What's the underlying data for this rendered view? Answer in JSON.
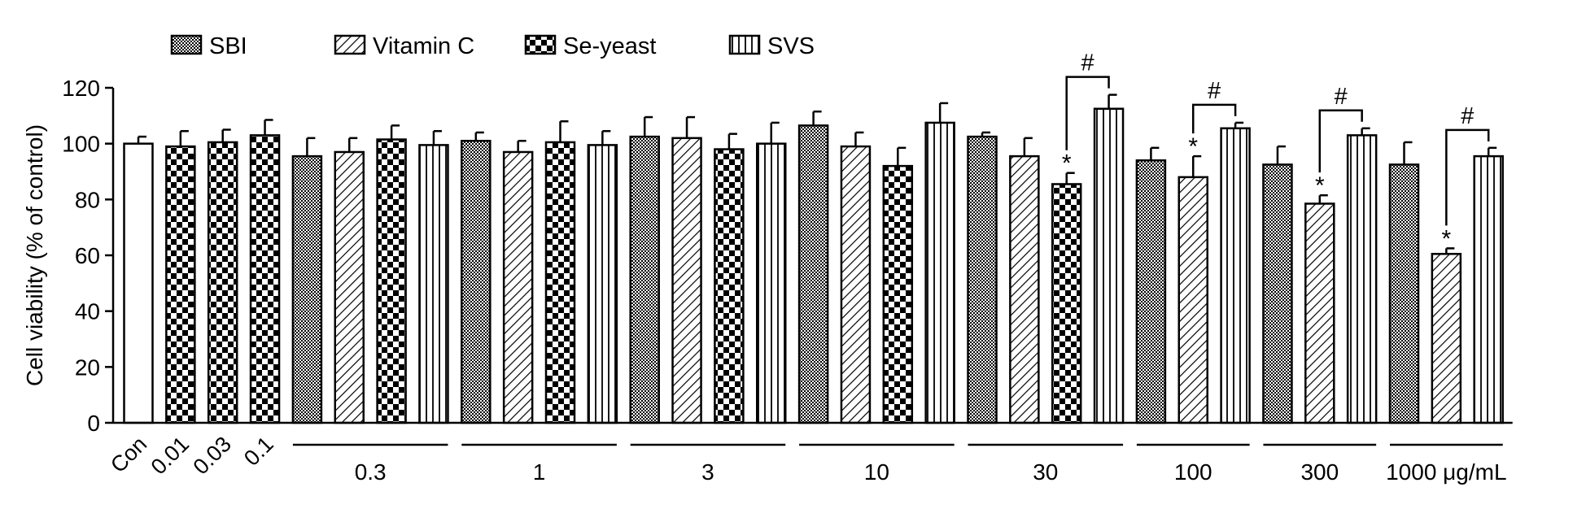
{
  "chart_data": {
    "type": "bar",
    "y_label": "Cell viability (% of control)",
    "ylim": [
      0,
      120
    ],
    "yticks": [
      0,
      20,
      40,
      60,
      80,
      100,
      120
    ],
    "categories": [
      "Con",
      "0.01",
      "0.03",
      "0.1",
      "0.3",
      "1",
      "3",
      "10",
      "30",
      "100",
      "300",
      "1000 μg/mL"
    ],
    "control": {
      "category": "Con",
      "value": 100,
      "error": 2.5,
      "color": "#ffffff"
    },
    "series": [
      {
        "name": "SBI",
        "pattern": "dots",
        "color": "#000000",
        "values": [
          null,
          null,
          null,
          null,
          95.5,
          101,
          102.5,
          106.5,
          102.5,
          94,
          92.5,
          92.5
        ],
        "errors": [
          null,
          null,
          null,
          null,
          6.5,
          3,
          7,
          5,
          1.5,
          4.5,
          6.5,
          8
        ]
      },
      {
        "name": "Vitamin C",
        "pattern": "diagonal",
        "color": "#000000",
        "values": [
          null,
          null,
          null,
          null,
          97,
          97,
          102,
          99,
          95.5,
          88,
          78.5,
          60.5
        ],
        "errors": [
          null,
          null,
          null,
          null,
          5,
          4,
          7.5,
          5,
          6.5,
          7.5,
          3,
          2
        ]
      },
      {
        "name": "Se-yeast",
        "pattern": "checker",
        "color": "#000000",
        "values": [
          null,
          99,
          100.5,
          103,
          101.5,
          100.5,
          98,
          92,
          85.5,
          null,
          null,
          null
        ],
        "errors": [
          null,
          5.5,
          4.5,
          5.5,
          5,
          7.5,
          5.5,
          6.5,
          4,
          null,
          null,
          null
        ]
      },
      {
        "name": "SVS",
        "pattern": "vertical",
        "color": "#000000",
        "values": [
          null,
          null,
          null,
          null,
          99.5,
          99.5,
          100,
          107.5,
          112.5,
          105.5,
          103,
          95.5
        ],
        "errors": [
          null,
          null,
          null,
          null,
          5,
          5,
          7.5,
          7,
          5,
          2,
          2.5,
          3
        ]
      }
    ],
    "annotations": [
      {
        "text": "*",
        "category": "30",
        "series": "Se-yeast"
      },
      {
        "text": "*",
        "category": "100",
        "series": "Vitamin C"
      },
      {
        "text": "*",
        "category": "300",
        "series": "Vitamin C"
      },
      {
        "text": "*",
        "category": "1000 μg/mL",
        "series": "Vitamin C"
      }
    ],
    "brackets": [
      {
        "text": "#",
        "category": "30",
        "from": "Se-yeast",
        "to": "SVS"
      },
      {
        "text": "#",
        "category": "100",
        "from": "Vitamin C",
        "to": "SVS"
      },
      {
        "text": "#",
        "category": "300",
        "from": "Vitamin C",
        "to": "SVS"
      },
      {
        "text": "#",
        "category": "1000 μg/mL",
        "from": "Vitamin C",
        "to": "SVS"
      }
    ]
  }
}
